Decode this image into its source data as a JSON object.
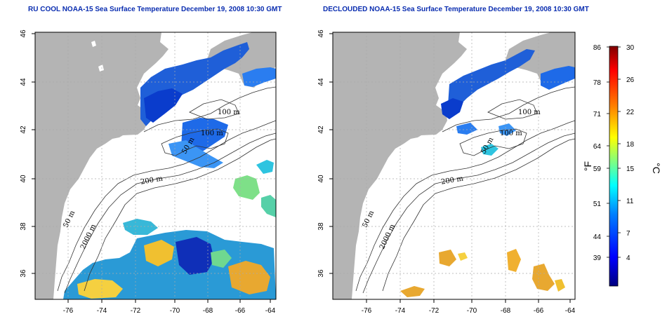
{
  "panels": [
    {
      "id": "left",
      "title": "RU COOL NOAA-15 Sea Surface Temperature December 19, 2008 10:30 GMT",
      "contour_labels": [
        "100 m",
        "100 m",
        "50 m",
        "200 m",
        "50 m",
        "2000 m"
      ]
    },
    {
      "id": "right",
      "title": "DECLOUDED NOAA-15 Sea Surface Temperature December 19, 2008 10:30 GMT",
      "contour_labels": [
        "100 m",
        "100 m",
        "50 m",
        "200 m",
        "50 m",
        "2000 m"
      ]
    }
  ],
  "axes": {
    "x_ticks": [
      "-76",
      "-74",
      "-72",
      "-70",
      "-68",
      "-66",
      "-64"
    ],
    "y_ticks": [
      "36",
      "38",
      "40",
      "42",
      "44",
      "46"
    ]
  },
  "colorbar": {
    "fahrenheit_ticks": [
      "86",
      "78",
      "71",
      "64",
      "59",
      "51",
      "44",
      "39"
    ],
    "celsius_ticks": [
      "30",
      "26",
      "22",
      "18",
      "15",
      "11",
      "7",
      "4"
    ],
    "left_unit": "°F",
    "right_unit": "°C",
    "colors": [
      "#00007f",
      "#0000ff",
      "#0080ff",
      "#00ffff",
      "#80ff80",
      "#ffff00",
      "#ff8000",
      "#ff0000",
      "#7f0000"
    ]
  },
  "colors": {
    "land": "#b4b4b4",
    "grid": "#aaaaaa",
    "title": "#0a2db0"
  }
}
